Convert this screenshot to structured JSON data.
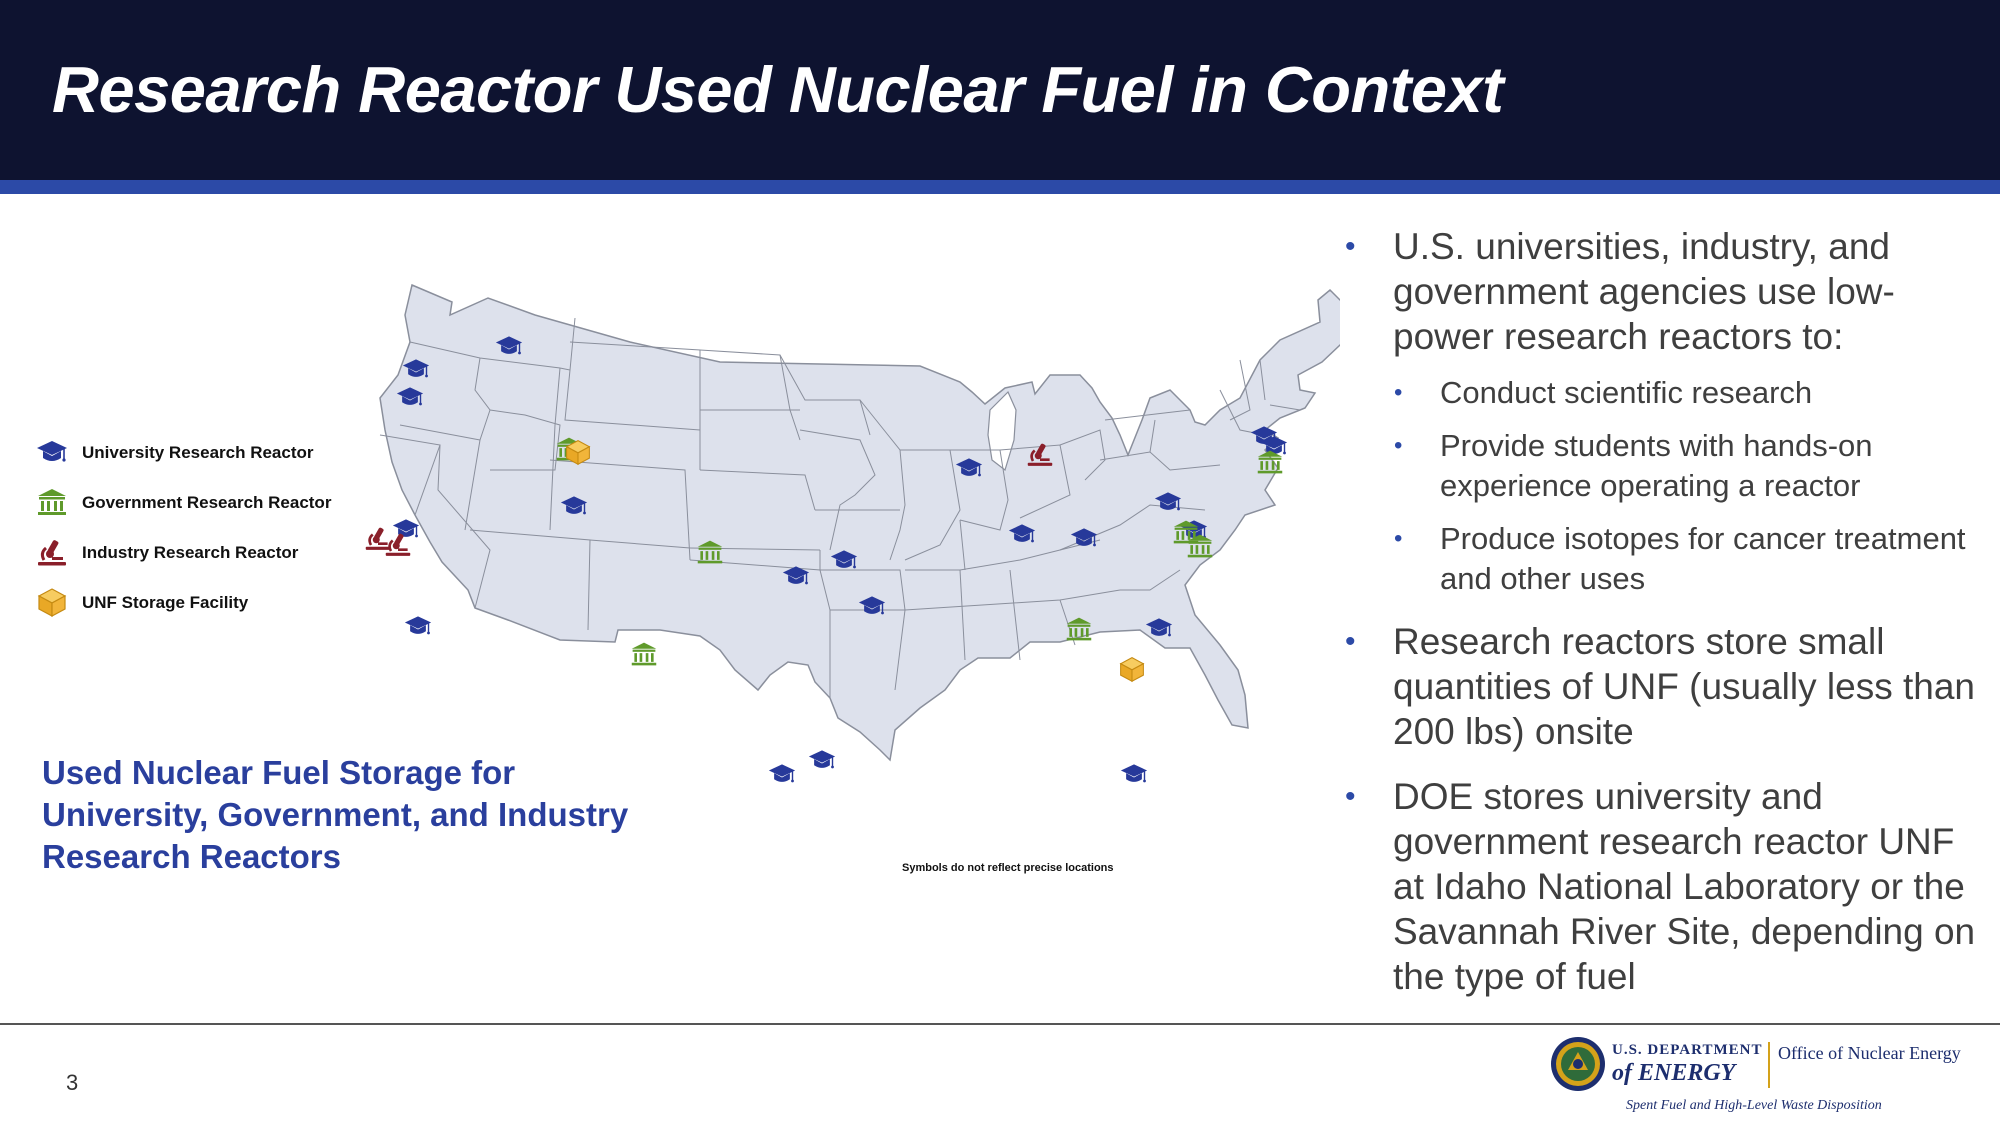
{
  "slide": {
    "title": "Research Reactor Used Nuclear Fuel in Context",
    "page_number": "3"
  },
  "legend": [
    {
      "icon": "university-icon",
      "label": "University Research Reactor",
      "color": "#27399a"
    },
    {
      "icon": "government-icon",
      "label": "Government Research Reactor",
      "color": "#5f9a2b"
    },
    {
      "icon": "industry-icon",
      "label": "Industry Research Reactor",
      "color": "#8a1f2a"
    },
    {
      "icon": "storage-icon",
      "label": "UNF Storage Facility",
      "color": "#f2b53a"
    }
  ],
  "map": {
    "caption": "Used Nuclear Fuel Storage for University, Government, and Industry Research Reactors",
    "note": "Symbols do not reflect precise locations",
    "fill_color": "#dde1ec",
    "border_color": "#8a8f9c"
  },
  "bullets": {
    "b1": "U.S. universities, industry, and government agencies use low-power research reactors to:",
    "b1_subs": [
      "Conduct scientific research",
      "Provide students with hands-on experience operating a reactor",
      "Produce isotopes for cancer treatment and other uses"
    ],
    "b2": "Research reactors store small quantities of UNF (usually less than 200 lbs) onsite",
    "b3": "DOE stores university and government research reactor UNF at Idaho National Laboratory or the Savannah River Site, depending on the type of fuel"
  },
  "footer": {
    "dept_small": "U.S. DEPARTMENT",
    "dept_big": "of ENERGY",
    "office": "Office of Nuclear Energy",
    "tagline": "Spent Fuel and High-Level Waste Disposition"
  },
  "colors": {
    "header_bg": "#0e1330",
    "accent_blue": "#2c4aa7",
    "caption_blue": "#2a3f9d",
    "text_gray": "#3f3f3f"
  }
}
